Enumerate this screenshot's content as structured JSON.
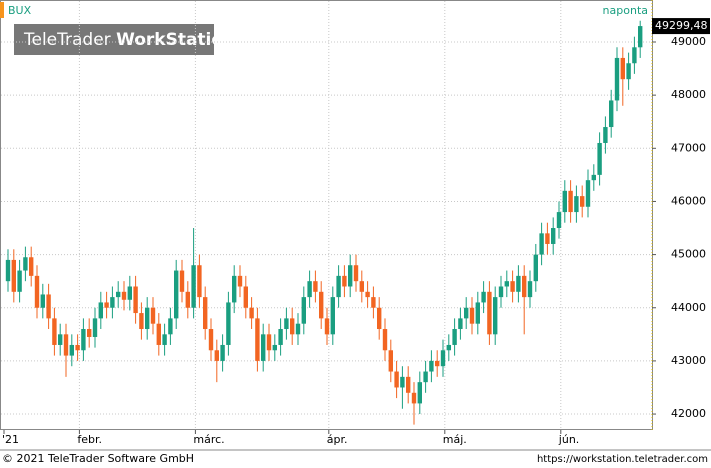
{
  "chart_data": {
    "type": "candlestick",
    "title": "BUX",
    "interval": "naponta",
    "watermark": {
      "brand": "TeleTrader",
      "product": "WorkStation"
    },
    "footer": {
      "copyright": "© 2021 TeleTrader Software GmbH",
      "url": "https://workstation.teletrader.com"
    },
    "up_color": "#1a9e80",
    "down_color": "#f26522",
    "grid": true,
    "ylim": [
      41700,
      49790
    ],
    "yticks": [
      42000,
      43000,
      44000,
      45000,
      46000,
      47000,
      48000,
      49000
    ],
    "last_price": {
      "value": 49299.48,
      "label": "49299,48"
    },
    "categories": [
      "'21",
      null,
      null,
      null,
      null,
      null,
      null,
      null,
      null,
      null,
      null,
      null,
      null,
      "febr.",
      null,
      null,
      null,
      null,
      null,
      null,
      null,
      null,
      null,
      null,
      null,
      null,
      null,
      null,
      null,
      null,
      null,
      null,
      null,
      "márc.",
      null,
      null,
      null,
      null,
      null,
      null,
      null,
      null,
      null,
      null,
      null,
      null,
      null,
      null,
      null,
      null,
      null,
      null,
      null,
      null,
      null,
      null,
      "ápr.",
      null,
      null,
      null,
      null,
      null,
      null,
      null,
      null,
      null,
      null,
      null,
      null,
      null,
      null,
      null,
      null,
      null,
      null,
      null,
      "máj.",
      null,
      null,
      null,
      null,
      null,
      null,
      null,
      null,
      null,
      null,
      null,
      null,
      null,
      null,
      null,
      null,
      null,
      null,
      null,
      "jún.",
      null,
      null,
      null,
      null,
      null,
      null,
      null,
      null,
      null,
      null,
      null,
      null,
      null
    ],
    "open": [
      44500,
      44900,
      44300,
      44700,
      44950,
      44600,
      44000,
      44250,
      43800,
      43300,
      43500,
      43100,
      43300,
      43200,
      43600,
      43450,
      43800,
      44100,
      44000,
      44200,
      44300,
      44150,
      44400,
      43900,
      43600,
      44000,
      43700,
      43300,
      43500,
      43800,
      44700,
      44300,
      44000,
      44800,
      44200,
      43600,
      43200,
      43000,
      43300,
      44100,
      44600,
      44400,
      44000,
      43800,
      43000,
      43500,
      43200,
      43300,
      43600,
      43800,
      43500,
      43700,
      44200,
      44500,
      44300,
      43800,
      43500,
      44200,
      44600,
      44400,
      44800,
      44500,
      44300,
      44200,
      44000,
      43600,
      43200,
      42800,
      42500,
      42700,
      42400,
      42200,
      42600,
      42800,
      43000,
      42900,
      43200,
      43300,
      43600,
      43800,
      44000,
      43700,
      44100,
      44300,
      43500,
      44200,
      44400,
      44500,
      44300,
      44600,
      44200,
      44500,
      45000,
      45400,
      45200,
      45500,
      45800,
      46200,
      45800,
      46100,
      45900,
      46400,
      46500,
      47100,
      47400,
      47900,
      48700,
      48300,
      48600,
      48900
    ],
    "high": [
      45100,
      45100,
      44900,
      45150,
      45150,
      44800,
      44450,
      44450,
      44000,
      43700,
      43700,
      43500,
      43500,
      43800,
      43800,
      44000,
      44300,
      44300,
      44400,
      44500,
      44500,
      44600,
      44600,
      44100,
      44200,
      44200,
      43900,
      43700,
      44000,
      44900,
      44900,
      44500,
      45500,
      45000,
      44400,
      43800,
      43400,
      43500,
      44300,
      44800,
      44800,
      44600,
      44200,
      44000,
      43700,
      43700,
      43500,
      43800,
      44000,
      44000,
      43900,
      44400,
      44700,
      44700,
      44500,
      44000,
      44400,
      44800,
      44800,
      45000,
      45000,
      44700,
      44500,
      44400,
      44200,
      43800,
      43400,
      43000,
      42900,
      42900,
      42600,
      42800,
      43000,
      43200,
      43200,
      43400,
      43500,
      43800,
      44000,
      44200,
      44200,
      44300,
      44500,
      44500,
      44400,
      44600,
      44700,
      44700,
      44800,
      44800,
      44700,
      45200,
      45600,
      45600,
      45700,
      46000,
      46400,
      46400,
      46300,
      46300,
      46600,
      46700,
      47300,
      47600,
      48100,
      48900,
      48900,
      48800,
      49100,
      49400
    ],
    "low": [
      44300,
      44100,
      44100,
      44500,
      44400,
      43800,
      43800,
      43600,
      43100,
      43100,
      42700,
      42900,
      43000,
      43000,
      43250,
      43250,
      43600,
      43800,
      43800,
      44000,
      43950,
      43950,
      43700,
      43400,
      43400,
      43500,
      43100,
      43100,
      43300,
      43600,
      44100,
      43800,
      43800,
      44000,
      43400,
      43000,
      42600,
      42800,
      43100,
      43900,
      44200,
      43800,
      43600,
      42800,
      42800,
      43000,
      43000,
      43100,
      43400,
      43300,
      43300,
      43500,
      44000,
      44100,
      43600,
      43300,
      43300,
      44000,
      44200,
      44200,
      44300,
      44100,
      44000,
      43800,
      43400,
      43000,
      42600,
      42300,
      42100,
      42200,
      41800,
      42000,
      42400,
      42600,
      42700,
      42700,
      43000,
      43100,
      43400,
      43600,
      43500,
      43500,
      43900,
      43300,
      43300,
      44000,
      44200,
      44100,
      44100,
      43500,
      44000,
      44300,
      44800,
      45000,
      45000,
      45300,
      45600,
      45600,
      45600,
      45700,
      45700,
      46200,
      46300,
      46900,
      47200,
      47700,
      47800,
      48100,
      48400,
      48700
    ],
    "close": [
      44900,
      44300,
      44700,
      44950,
      44600,
      44000,
      44250,
      43800,
      43300,
      43500,
      43100,
      43300,
      43200,
      43600,
      43450,
      43800,
      44100,
      44000,
      44200,
      44300,
      44150,
      44400,
      43900,
      43600,
      44000,
      43700,
      43300,
      43500,
      43800,
      44700,
      44300,
      44000,
      44800,
      44200,
      43600,
      43200,
      43000,
      43300,
      44100,
      44600,
      44400,
      44000,
      43800,
      43000,
      43500,
      43200,
      43300,
      43600,
      43800,
      43500,
      43700,
      44200,
      44500,
      44300,
      43800,
      43500,
      44200,
      44600,
      44400,
      44800,
      44500,
      44300,
      44200,
      44000,
      43600,
      43200,
      42800,
      42500,
      42700,
      42400,
      42200,
      42600,
      42800,
      43000,
      42900,
      43200,
      43300,
      43600,
      43800,
      44000,
      43700,
      44100,
      44300,
      43500,
      44200,
      44400,
      44500,
      44300,
      44600,
      44200,
      44500,
      45000,
      45400,
      45200,
      45500,
      45800,
      46200,
      45800,
      46100,
      45900,
      46400,
      46500,
      47100,
      47400,
      47900,
      48700,
      48300,
      48600,
      48900,
      49299.48
    ]
  }
}
